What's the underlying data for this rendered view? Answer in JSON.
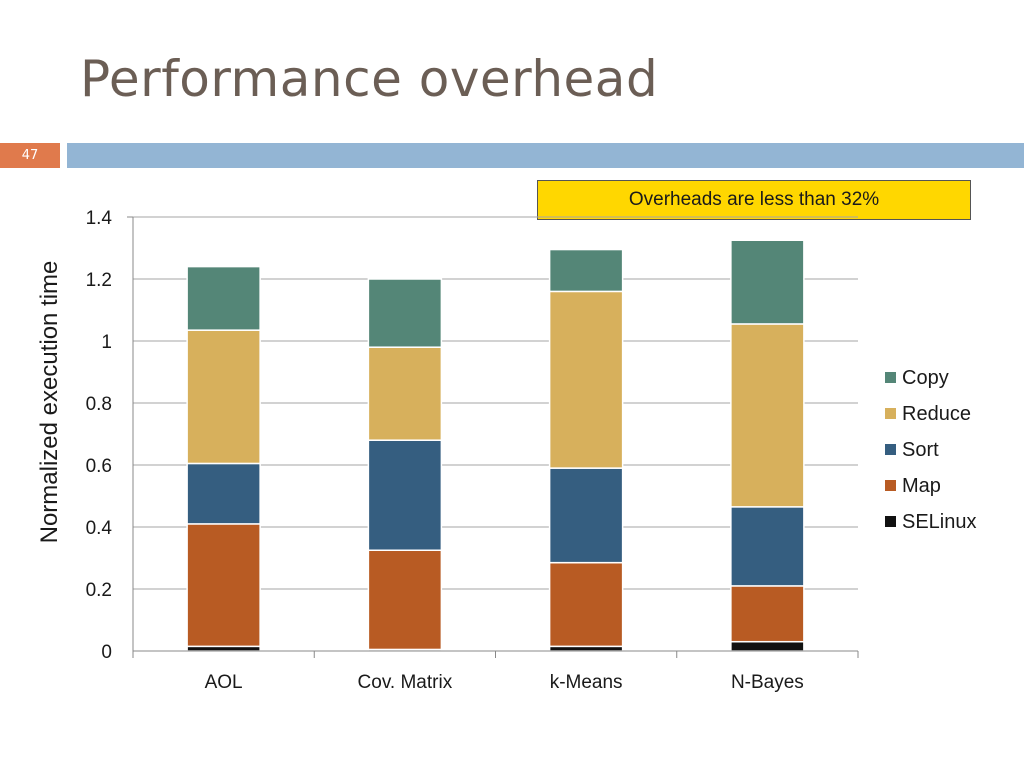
{
  "slide": {
    "title": "Performance overhead",
    "page_number": "47"
  },
  "callout": {
    "text": "Overheads are less than 32%"
  },
  "colors": {
    "title": "#6b5e55",
    "badge": "#e07a4c",
    "header_bar": "#93b5d4",
    "callout_bg": "#ffd700"
  },
  "chart_data": {
    "type": "bar",
    "stacked": true,
    "categories": [
      "AOL",
      "Cov. Matrix",
      "k-Means",
      "N-Bayes"
    ],
    "ylabel": "Normalized execution time",
    "ylim": [
      0,
      1.4
    ],
    "yticks": [
      "0",
      "0.2",
      "0.4",
      "0.6",
      "0.8",
      "1",
      "1.2",
      "1.4"
    ],
    "grid": true,
    "legend_position": "right",
    "series": [
      {
        "name": "SELinux",
        "color": "#111111",
        "values": [
          0.015,
          0.005,
          0.015,
          0.03
        ]
      },
      {
        "name": "Map",
        "color": "#b85b23",
        "values": [
          0.395,
          0.32,
          0.27,
          0.18
        ]
      },
      {
        "name": "Sort",
        "color": "#355e80",
        "values": [
          0.195,
          0.355,
          0.305,
          0.255
        ]
      },
      {
        "name": "Reduce",
        "color": "#d7b05c",
        "values": [
          0.43,
          0.3,
          0.57,
          0.59
        ]
      },
      {
        "name": "Copy",
        "color": "#548677",
        "values": [
          0.205,
          0.22,
          0.135,
          0.27
        ]
      }
    ]
  }
}
